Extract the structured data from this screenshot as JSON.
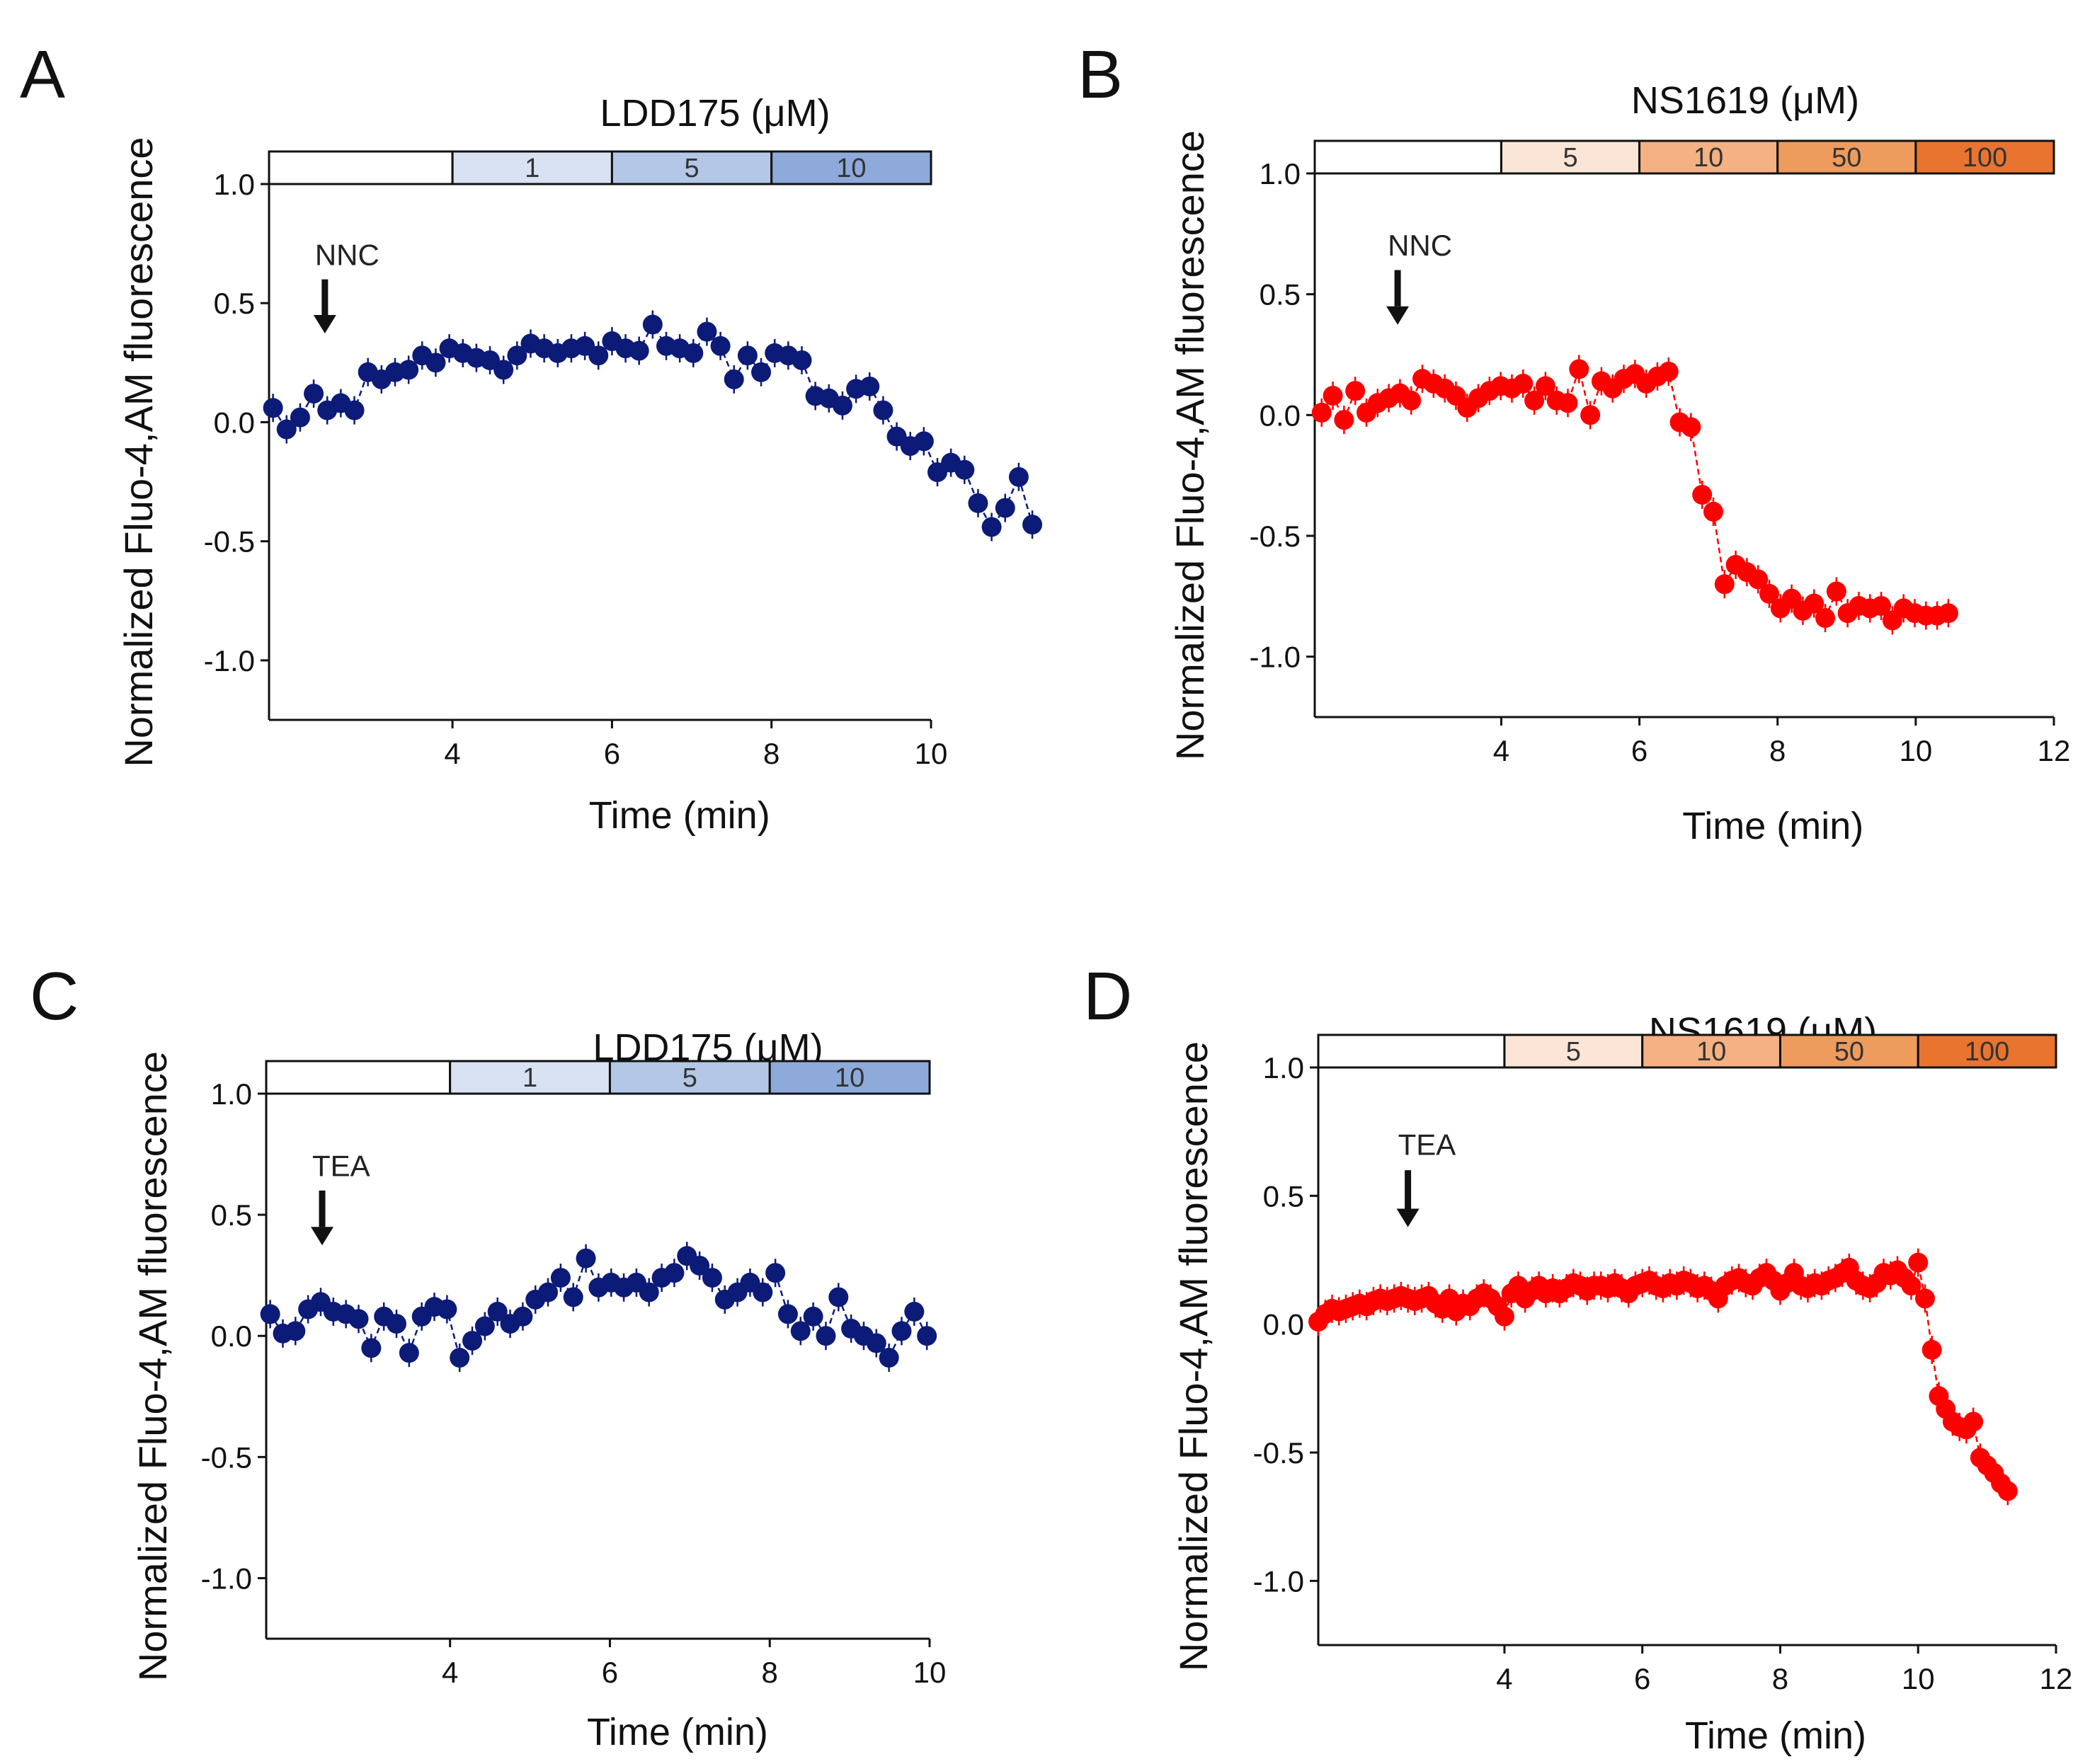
{
  "figure": {
    "y_axis_label": "Normalized Fluo-4,AM fluorescence",
    "x_axis_label": "Time (min)"
  },
  "chart_data": [
    {
      "type": "scatter",
      "panel_label": "A",
      "compound_title": "LDD175 (μM)",
      "blocker_label": "NNC",
      "blocker_time": 2.4,
      "concentration_bar": [
        {
          "label": "",
          "start": 1.7,
          "end": 4.0,
          "color": "#ffffff"
        },
        {
          "label": "1",
          "start": 4.0,
          "end": 6.0,
          "color": "#d9e2f3"
        },
        {
          "label": "5",
          "start": 6.0,
          "end": 8.0,
          "color": "#b4c7e7"
        },
        {
          "label": "10",
          "start": 8.0,
          "end": 10.0,
          "color": "#8eaadb"
        }
      ],
      "xlim": [
        1.7,
        10.0
      ],
      "ylim": [
        -1.25,
        1.0
      ],
      "x_ticks": [
        {
          "v": 4,
          "label": "4"
        },
        {
          "v": 6,
          "label": "6"
        },
        {
          "v": 8,
          "label": "8"
        },
        {
          "v": 10,
          "label": "10"
        }
      ],
      "y_ticks": [
        {
          "v": 1.0,
          "label": "1.0"
        },
        {
          "v": 0.5,
          "label": "0.5"
        },
        {
          "v": 0.0,
          "label": "0.0"
        },
        {
          "v": -0.5,
          "label": "-0.5"
        },
        {
          "v": -1.0,
          "label": "-1.0"
        }
      ],
      "color": "#0c1a78",
      "series": [
        {
          "name": "LDD175",
          "x_start": 1.75,
          "x_step": 0.17,
          "values": [
            0.06,
            -0.03,
            0.02,
            0.12,
            0.05,
            0.08,
            0.05,
            0.21,
            0.18,
            0.21,
            0.22,
            0.28,
            0.25,
            0.31,
            0.29,
            0.27,
            0.26,
            0.22,
            0.28,
            0.33,
            0.31,
            0.29,
            0.31,
            0.32,
            0.28,
            0.34,
            0.31,
            0.3,
            0.41,
            0.32,
            0.31,
            0.29,
            0.38,
            0.32,
            0.18,
            0.28,
            0.21,
            0.29,
            0.28,
            0.26,
            0.11,
            0.1,
            0.07,
            0.14,
            0.15,
            0.05,
            -0.06,
            -0.1,
            -0.08,
            -0.21,
            -0.17,
            -0.2,
            -0.34,
            -0.44,
            -0.36,
            -0.23,
            -0.43
          ]
        }
      ]
    },
    {
      "type": "scatter",
      "panel_label": "B",
      "compound_title": "NS1619 (μM)",
      "blocker_label": "NNC",
      "blocker_time": 2.5,
      "concentration_bar": [
        {
          "label": "",
          "start": 1.3,
          "end": 4.0,
          "color": "#ffffff"
        },
        {
          "label": "5",
          "start": 4.0,
          "end": 6.0,
          "color": "#fbe5d6"
        },
        {
          "label": "10",
          "start": 6.0,
          "end": 8.0,
          "color": "#f4b183"
        },
        {
          "label": "50",
          "start": 8.0,
          "end": 10.0,
          "color": "#ee9b5e"
        },
        {
          "label": "100",
          "start": 10.0,
          "end": 12.0,
          "color": "#e8742f"
        }
      ],
      "xlim": [
        1.3,
        12.0
      ],
      "ylim": [
        -1.25,
        1.0
      ],
      "x_ticks": [
        {
          "v": 4,
          "label": "4"
        },
        {
          "v": 6,
          "label": "6"
        },
        {
          "v": 8,
          "label": "8"
        },
        {
          "v": 10,
          "label": "10"
        },
        {
          "v": 12,
          "label": "12"
        }
      ],
      "y_ticks": [
        {
          "v": 1.0,
          "label": "1.0"
        },
        {
          "v": 0.5,
          "label": "0.5"
        },
        {
          "v": 0.0,
          "label": "0.0"
        },
        {
          "v": -0.5,
          "label": "-0.5"
        },
        {
          "v": -1.0,
          "label": "-1.0"
        }
      ],
      "color": "#ff0000",
      "series": [
        {
          "name": "NS1619",
          "x_start": 1.4,
          "x_step": 0.162,
          "values": [
            0.01,
            0.08,
            -0.02,
            0.1,
            0.01,
            0.05,
            0.07,
            0.09,
            0.06,
            0.15,
            0.13,
            0.11,
            0.08,
            0.03,
            0.07,
            0.1,
            0.12,
            0.11,
            0.13,
            0.06,
            0.12,
            0.06,
            0.05,
            0.19,
            0.0,
            0.14,
            0.11,
            0.15,
            0.17,
            0.13,
            0.16,
            0.18,
            -0.03,
            -0.05,
            -0.33,
            -0.4,
            -0.7,
            -0.62,
            -0.65,
            -0.68,
            -0.74,
            -0.8,
            -0.76,
            -0.81,
            -0.78,
            -0.84,
            -0.73,
            -0.82,
            -0.79,
            -0.8,
            -0.79,
            -0.85,
            -0.8,
            -0.82,
            -0.83,
            -0.83,
            -0.82
          ]
        }
      ]
    },
    {
      "type": "scatter",
      "panel_label": "C",
      "compound_title": "LDD175 (μM)",
      "blocker_label": "TEA",
      "blocker_time": 2.4,
      "concentration_bar": [
        {
          "label": "",
          "start": 1.7,
          "end": 4.0,
          "color": "#ffffff"
        },
        {
          "label": "1",
          "start": 4.0,
          "end": 6.0,
          "color": "#d9e2f3"
        },
        {
          "label": "5",
          "start": 6.0,
          "end": 8.0,
          "color": "#b4c7e7"
        },
        {
          "label": "10",
          "start": 8.0,
          "end": 10.0,
          "color": "#8eaadb"
        }
      ],
      "xlim": [
        1.7,
        10.0
      ],
      "ylim": [
        -1.25,
        1.0
      ],
      "x_ticks": [
        {
          "v": 4,
          "label": "4"
        },
        {
          "v": 6,
          "label": "6"
        },
        {
          "v": 8,
          "label": "8"
        },
        {
          "v": 10,
          "label": "10"
        }
      ],
      "y_ticks": [
        {
          "v": 1.0,
          "label": "1.0"
        },
        {
          "v": 0.5,
          "label": "0.5"
        },
        {
          "v": 0.0,
          "label": "0.0"
        },
        {
          "v": -0.5,
          "label": "-0.5"
        },
        {
          "v": -1.0,
          "label": "-1.0"
        }
      ],
      "color": "#0c1a78",
      "series": [
        {
          "name": "LDD175",
          "x_start": 1.75,
          "x_step": 0.158,
          "values": [
            0.09,
            0.01,
            0.02,
            0.11,
            0.14,
            0.1,
            0.09,
            0.07,
            -0.05,
            0.08,
            0.05,
            -0.07,
            0.08,
            0.12,
            0.11,
            -0.09,
            -0.02,
            0.04,
            0.1,
            0.05,
            0.08,
            0.15,
            0.18,
            0.24,
            0.16,
            0.32,
            0.2,
            0.22,
            0.2,
            0.22,
            0.18,
            0.24,
            0.26,
            0.33,
            0.29,
            0.24,
            0.15,
            0.18,
            0.22,
            0.18,
            0.26,
            0.09,
            0.02,
            0.08,
            0.0,
            0.16,
            0.03,
            0.0,
            -0.03,
            -0.09,
            0.02,
            0.1,
            0.0
          ]
        }
      ]
    },
    {
      "type": "scatter",
      "panel_label": "D",
      "compound_title": "NS1619 (μM)",
      "blocker_label": "TEA",
      "blocker_time": 2.6,
      "concentration_bar": [
        {
          "label": "",
          "start": 1.3,
          "end": 4.0,
          "color": "#ffffff"
        },
        {
          "label": "5",
          "start": 4.0,
          "end": 6.0,
          "color": "#fbe5d6"
        },
        {
          "label": "10",
          "start": 6.0,
          "end": 8.0,
          "color": "#f4b183"
        },
        {
          "label": "50",
          "start": 8.0,
          "end": 10.0,
          "color": "#ee9b5e"
        },
        {
          "label": "100",
          "start": 10.0,
          "end": 12.0,
          "color": "#e8742f"
        }
      ],
      "xlim": [
        1.3,
        12.0
      ],
      "ylim": [
        -1.25,
        1.0
      ],
      "x_ticks": [
        {
          "v": 4,
          "label": "4"
        },
        {
          "v": 6,
          "label": "6"
        },
        {
          "v": 8,
          "label": "8"
        },
        {
          "v": 10,
          "label": "10"
        },
        {
          "v": 12,
          "label": "12"
        }
      ],
      "y_ticks": [
        {
          "v": 1.0,
          "label": "1.0"
        },
        {
          "v": 0.5,
          "label": "0.5"
        },
        {
          "v": 0.0,
          "label": "0.0"
        },
        {
          "v": -0.5,
          "label": "-0.5"
        },
        {
          "v": -1.0,
          "label": "-1.0"
        }
      ],
      "color": "#ff0000",
      "series": [
        {
          "name": "NS1619",
          "x_start": 1.3,
          "x_step": 0.1,
          "values": [
            0.01,
            0.04,
            0.06,
            0.05,
            0.06,
            0.07,
            0.08,
            0.07,
            0.09,
            0.1,
            0.09,
            0.1,
            0.11,
            0.1,
            0.09,
            0.1,
            0.11,
            0.08,
            0.06,
            0.1,
            0.05,
            0.08,
            0.07,
            0.1,
            0.12,
            0.1,
            0.07,
            0.03,
            0.12,
            0.15,
            0.1,
            0.13,
            0.15,
            0.12,
            0.14,
            0.12,
            0.14,
            0.16,
            0.15,
            0.13,
            0.15,
            0.15,
            0.14,
            0.16,
            0.14,
            0.12,
            0.15,
            0.16,
            0.17,
            0.15,
            0.14,
            0.16,
            0.15,
            0.17,
            0.16,
            0.14,
            0.15,
            0.13,
            0.1,
            0.15,
            0.17,
            0.18,
            0.16,
            0.15,
            0.18,
            0.2,
            0.17,
            0.13,
            0.16,
            0.2,
            0.15,
            0.14,
            0.16,
            0.15,
            0.17,
            0.18,
            0.2,
            0.22,
            0.17,
            0.15,
            0.14,
            0.16,
            0.2,
            0.19,
            0.21,
            0.18,
            0.15,
            0.24,
            0.1,
            -0.1,
            -0.28,
            -0.33,
            -0.38,
            -0.4,
            -0.41,
            -0.38,
            -0.52,
            -0.55,
            -0.58,
            -0.62,
            -0.65
          ]
        }
      ]
    }
  ]
}
